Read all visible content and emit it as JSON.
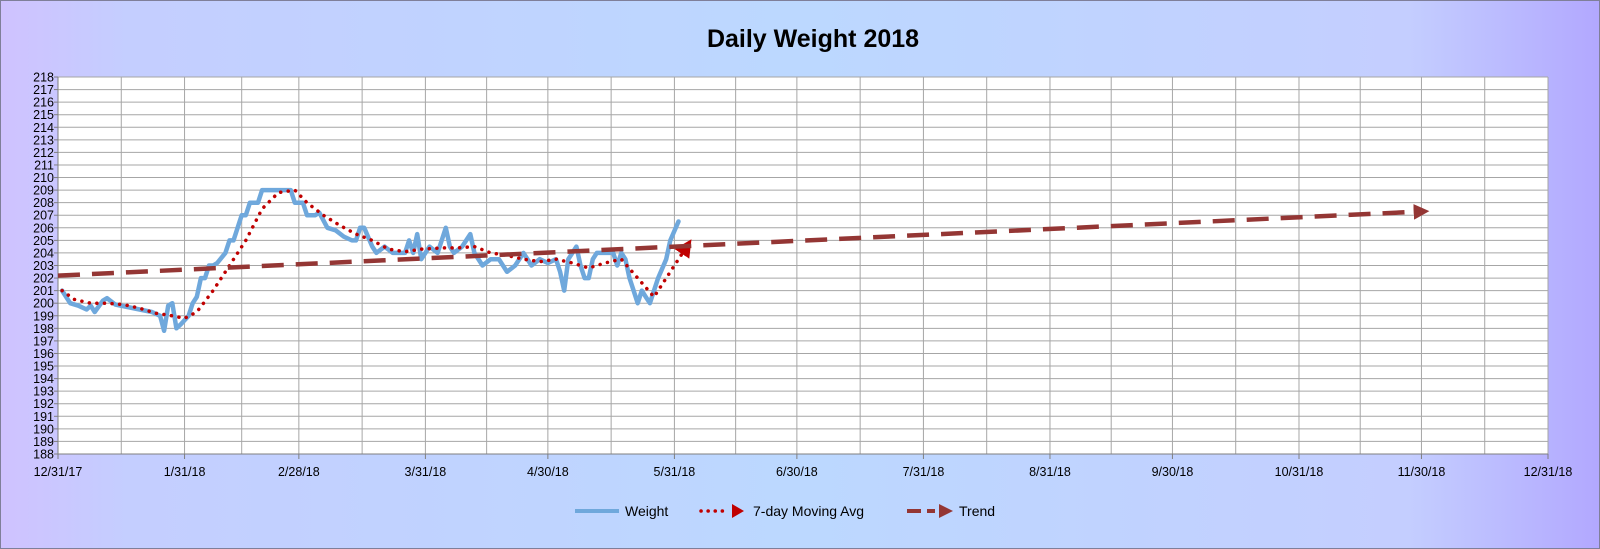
{
  "colors": {
    "weight": "#6fa8dc",
    "moving_avg": "#c00000",
    "trend": "#943634",
    "plot_bg": "#ffffff",
    "grid": "#a6a6a6"
  },
  "chart_data": {
    "type": "line",
    "title": "Daily Weight 2018",
    "xlabel": "",
    "ylabel": "",
    "ylim": [
      188,
      218
    ],
    "xlim": [
      "2017-12-31",
      "2018-12-31"
    ],
    "x_tick_labels": [
      "12/31/17",
      "1/31/18",
      "2/28/18",
      "3/31/18",
      "4/30/18",
      "5/31/18",
      "6/30/18",
      "7/31/18",
      "8/31/18",
      "9/30/18",
      "10/31/18",
      "11/30/18",
      "12/31/18"
    ],
    "y_tick_labels": [
      "188",
      "189",
      "190",
      "191",
      "192",
      "193",
      "194",
      "195",
      "196",
      "197",
      "198",
      "199",
      "200",
      "201",
      "202",
      "203",
      "204",
      "205",
      "206",
      "207",
      "208",
      "209",
      "210",
      "211",
      "212",
      "213",
      "214",
      "215",
      "216",
      "217",
      "218"
    ],
    "grid": true,
    "legend_position": "bottom",
    "series": [
      {
        "name": "Weight",
        "style": "solid",
        "points": [
          [
            "2018-01-01",
            201.0
          ],
          [
            "2018-01-03",
            200.0
          ],
          [
            "2018-01-05",
            199.8
          ],
          [
            "2018-01-07",
            199.5
          ],
          [
            "2018-01-08",
            199.8
          ],
          [
            "2018-01-09",
            199.3
          ],
          [
            "2018-01-11",
            200.2
          ],
          [
            "2018-01-12",
            200.4
          ],
          [
            "2018-01-14",
            199.9
          ],
          [
            "2018-01-17",
            199.7
          ],
          [
            "2018-01-20",
            199.5
          ],
          [
            "2018-01-23",
            199.3
          ],
          [
            "2018-01-25",
            199.0
          ],
          [
            "2018-01-26",
            197.8
          ],
          [
            "2018-01-27",
            199.8
          ],
          [
            "2018-01-28",
            200.0
          ],
          [
            "2018-01-29",
            198.0
          ],
          [
            "2018-01-30",
            198.3
          ],
          [
            "2018-02-01",
            199.0
          ],
          [
            "2018-02-02",
            200.0
          ],
          [
            "2018-02-03",
            200.5
          ],
          [
            "2018-02-04",
            202.0
          ],
          [
            "2018-02-05",
            202.0
          ],
          [
            "2018-02-06",
            203.0
          ],
          [
            "2018-02-07",
            203.0
          ],
          [
            "2018-02-08",
            203.2
          ],
          [
            "2018-02-10",
            204.0
          ],
          [
            "2018-02-11",
            205.0
          ],
          [
            "2018-02-12",
            205.0
          ],
          [
            "2018-02-13",
            206.0
          ],
          [
            "2018-02-14",
            207.0
          ],
          [
            "2018-02-15",
            207.0
          ],
          [
            "2018-02-16",
            208.0
          ],
          [
            "2018-02-18",
            208.0
          ],
          [
            "2018-02-19",
            209.0
          ],
          [
            "2018-02-22",
            209.0
          ],
          [
            "2018-02-24",
            209.0
          ],
          [
            "2018-02-26",
            209.0
          ],
          [
            "2018-02-27",
            208.0
          ],
          [
            "2018-03-01",
            208.0
          ],
          [
            "2018-03-02",
            207.0
          ],
          [
            "2018-03-04",
            207.0
          ],
          [
            "2018-03-05",
            207.2
          ],
          [
            "2018-03-07",
            206.0
          ],
          [
            "2018-03-09",
            205.8
          ],
          [
            "2018-03-11",
            205.3
          ],
          [
            "2018-03-13",
            205.0
          ],
          [
            "2018-03-14",
            205.0
          ],
          [
            "2018-03-15",
            206.0
          ],
          [
            "2018-03-16",
            206.0
          ],
          [
            "2018-03-18",
            204.5
          ],
          [
            "2018-03-19",
            204.0
          ],
          [
            "2018-03-21",
            204.5
          ],
          [
            "2018-03-23",
            204.0
          ],
          [
            "2018-03-26",
            204.0
          ],
          [
            "2018-03-27",
            205.0
          ],
          [
            "2018-03-28",
            204.0
          ],
          [
            "2018-03-29",
            205.5
          ],
          [
            "2018-03-30",
            203.5
          ],
          [
            "2018-04-01",
            204.5
          ],
          [
            "2018-04-03",
            204.0
          ],
          [
            "2018-04-05",
            206.0
          ],
          [
            "2018-04-06",
            204.5
          ],
          [
            "2018-04-07",
            204.0
          ],
          [
            "2018-04-09",
            204.5
          ],
          [
            "2018-04-10",
            205.0
          ],
          [
            "2018-04-11",
            205.5
          ],
          [
            "2018-04-12",
            204.0
          ],
          [
            "2018-04-14",
            203.0
          ],
          [
            "2018-04-16",
            203.5
          ],
          [
            "2018-04-18",
            203.5
          ],
          [
            "2018-04-20",
            202.5
          ],
          [
            "2018-04-22",
            203.0
          ],
          [
            "2018-04-24",
            204.0
          ],
          [
            "2018-04-26",
            203.0
          ],
          [
            "2018-04-28",
            203.5
          ],
          [
            "2018-04-30",
            203.2
          ],
          [
            "2018-05-02",
            203.5
          ],
          [
            "2018-05-03",
            202.5
          ],
          [
            "2018-05-04",
            201.0
          ],
          [
            "2018-05-05",
            203.5
          ],
          [
            "2018-05-06",
            204.0
          ],
          [
            "2018-05-07",
            204.5
          ],
          [
            "2018-05-08",
            203.0
          ],
          [
            "2018-05-09",
            202.0
          ],
          [
            "2018-05-10",
            202.0
          ],
          [
            "2018-05-11",
            203.5
          ],
          [
            "2018-05-12",
            204.0
          ],
          [
            "2018-05-14",
            204.0
          ],
          [
            "2018-05-16",
            204.0
          ],
          [
            "2018-05-17",
            203.0
          ],
          [
            "2018-05-18",
            204.0
          ],
          [
            "2018-05-19",
            203.5
          ],
          [
            "2018-05-20",
            202.0
          ],
          [
            "2018-05-21",
            201.0
          ],
          [
            "2018-05-22",
            200.0
          ],
          [
            "2018-05-23",
            201.0
          ],
          [
            "2018-05-24",
            200.5
          ],
          [
            "2018-05-25",
            200.0
          ],
          [
            "2018-05-26",
            201.0
          ],
          [
            "2018-05-27",
            202.0
          ],
          [
            "2018-05-29",
            203.5
          ],
          [
            "2018-05-30",
            205.0
          ],
          [
            "2018-06-01",
            206.5
          ]
        ]
      },
      {
        "name": "7-day Moving Avg",
        "style": "dotted",
        "points": [
          [
            "2018-01-01",
            201.0
          ],
          [
            "2018-01-04",
            200.3
          ],
          [
            "2018-01-08",
            200.0
          ],
          [
            "2018-01-12",
            200.0
          ],
          [
            "2018-01-16",
            199.9
          ],
          [
            "2018-01-20",
            199.6
          ],
          [
            "2018-01-24",
            199.2
          ],
          [
            "2018-01-28",
            199.0
          ],
          [
            "2018-01-31",
            198.8
          ],
          [
            "2018-02-03",
            199.3
          ],
          [
            "2018-02-07",
            201.0
          ],
          [
            "2018-02-11",
            203.0
          ],
          [
            "2018-02-15",
            205.0
          ],
          [
            "2018-02-19",
            207.5
          ],
          [
            "2018-02-23",
            208.8
          ],
          [
            "2018-02-27",
            209.0
          ],
          [
            "2018-03-02",
            208.0
          ],
          [
            "2018-03-06",
            207.0
          ],
          [
            "2018-03-10",
            206.2
          ],
          [
            "2018-03-14",
            205.5
          ],
          [
            "2018-03-18",
            205.0
          ],
          [
            "2018-03-22",
            204.3
          ],
          [
            "2018-03-26",
            204.1
          ],
          [
            "2018-03-30",
            204.3
          ],
          [
            "2018-04-04",
            204.4
          ],
          [
            "2018-04-08",
            204.4
          ],
          [
            "2018-04-12",
            204.5
          ],
          [
            "2018-04-16",
            204.0
          ],
          [
            "2018-04-20",
            203.8
          ],
          [
            "2018-04-24",
            203.5
          ],
          [
            "2018-04-28",
            203.3
          ],
          [
            "2018-05-02",
            203.5
          ],
          [
            "2018-05-06",
            203.2
          ],
          [
            "2018-05-10",
            202.8
          ],
          [
            "2018-05-14",
            203.2
          ],
          [
            "2018-05-18",
            203.5
          ],
          [
            "2018-05-22",
            202.0
          ],
          [
            "2018-05-26",
            200.5
          ],
          [
            "2018-05-29",
            202.0
          ],
          [
            "2018-06-01",
            203.5
          ],
          [
            "2018-06-03",
            204.5
          ]
        ]
      },
      {
        "name": "Trend",
        "style": "dashed",
        "points": [
          [
            "2017-12-31",
            202.2
          ],
          [
            "2018-11-30",
            207.3
          ]
        ]
      }
    ]
  }
}
